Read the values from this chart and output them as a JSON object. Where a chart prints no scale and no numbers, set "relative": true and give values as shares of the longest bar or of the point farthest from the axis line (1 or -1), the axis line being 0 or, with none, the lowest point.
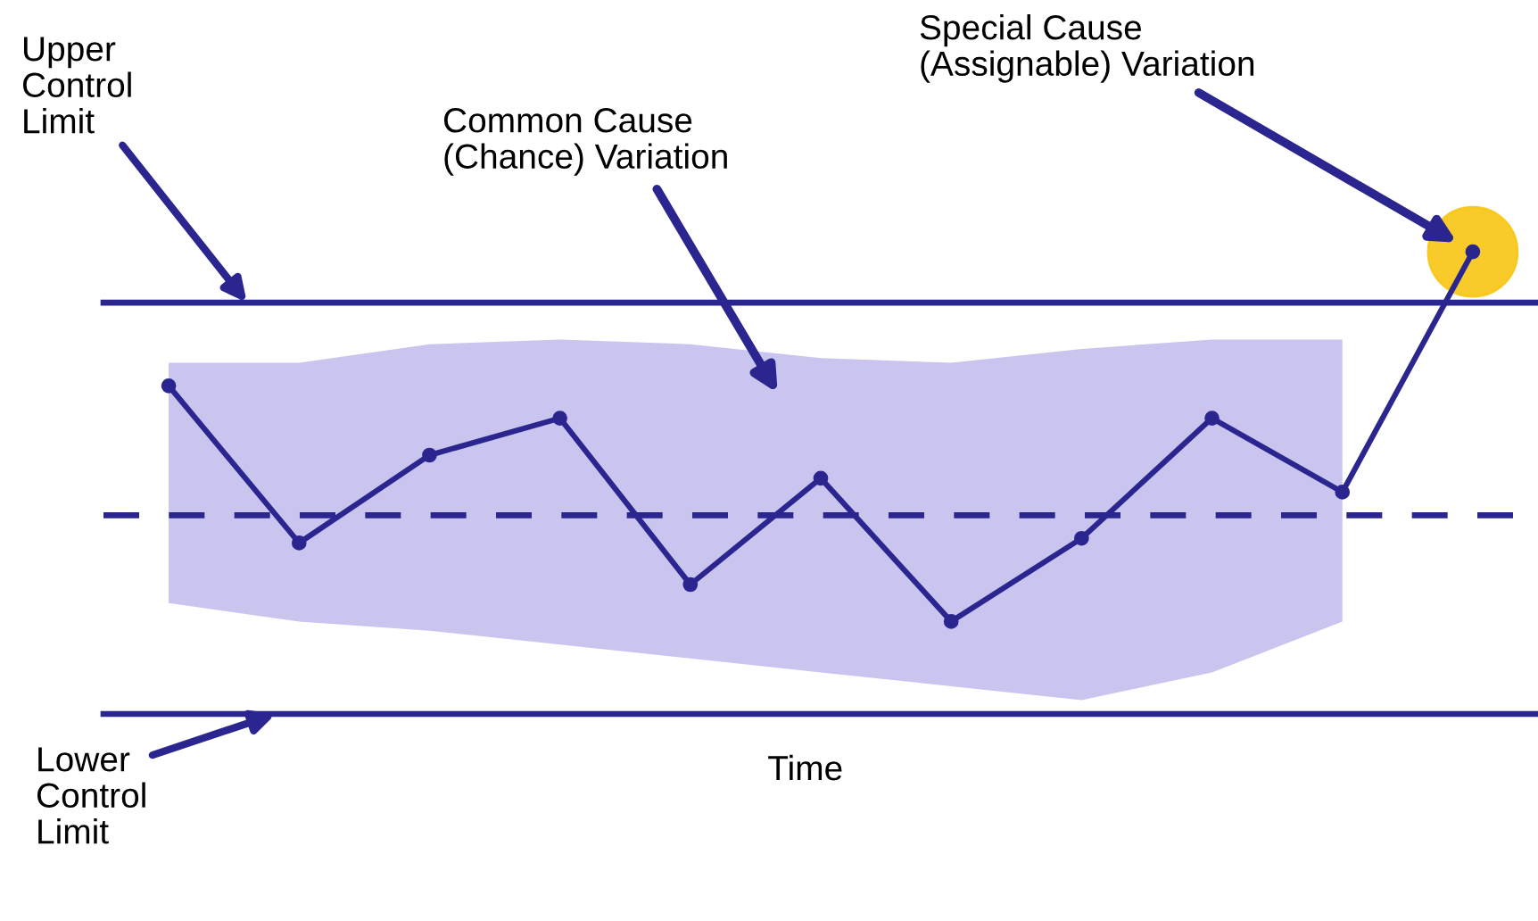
{
  "chart_data": {
    "type": "line",
    "relative": true,
    "xlabel": "Time",
    "categories": [
      null,
      null,
      null,
      null,
      null,
      null,
      null,
      null,
      null,
      null,
      null
    ],
    "series": [
      {
        "color": "#2b2590",
        "values": [
          0.71,
          0.37,
          0.56,
          0.64,
          0.28,
          0.51,
          0.2,
          0.38,
          0.64,
          0.48,
          1.0
        ],
        "upper": [
          0.76,
          0.76,
          0.8,
          0.81,
          0.8,
          0.77,
          0.76,
          0.79,
          0.81,
          0.81,
          null
        ],
        "lower": [
          0.24,
          0.2,
          0.18,
          0.15,
          0.12,
          0.09,
          0.06,
          0.03,
          0.09,
          0.2,
          null
        ]
      }
    ],
    "marker": "circle",
    "line_style": "solid",
    "legend": false,
    "ref_lines": [
      {
        "axis": "y",
        "value": 0.89,
        "label": "Upper Control Limit",
        "color": "#2b2590",
        "line_style": "solid"
      },
      {
        "axis": "y",
        "value": 0.43,
        "color": "#2b2590",
        "line_style": "dashed"
      },
      {
        "axis": "y",
        "value": 0,
        "label": "Lower Control Limit",
        "color": "#2b2590",
        "line_style": "solid"
      }
    ],
    "annotations": [
      "Common Cause (Chance) Variation",
      "Special Cause (Assignable) Variation"
    ]
  }
}
